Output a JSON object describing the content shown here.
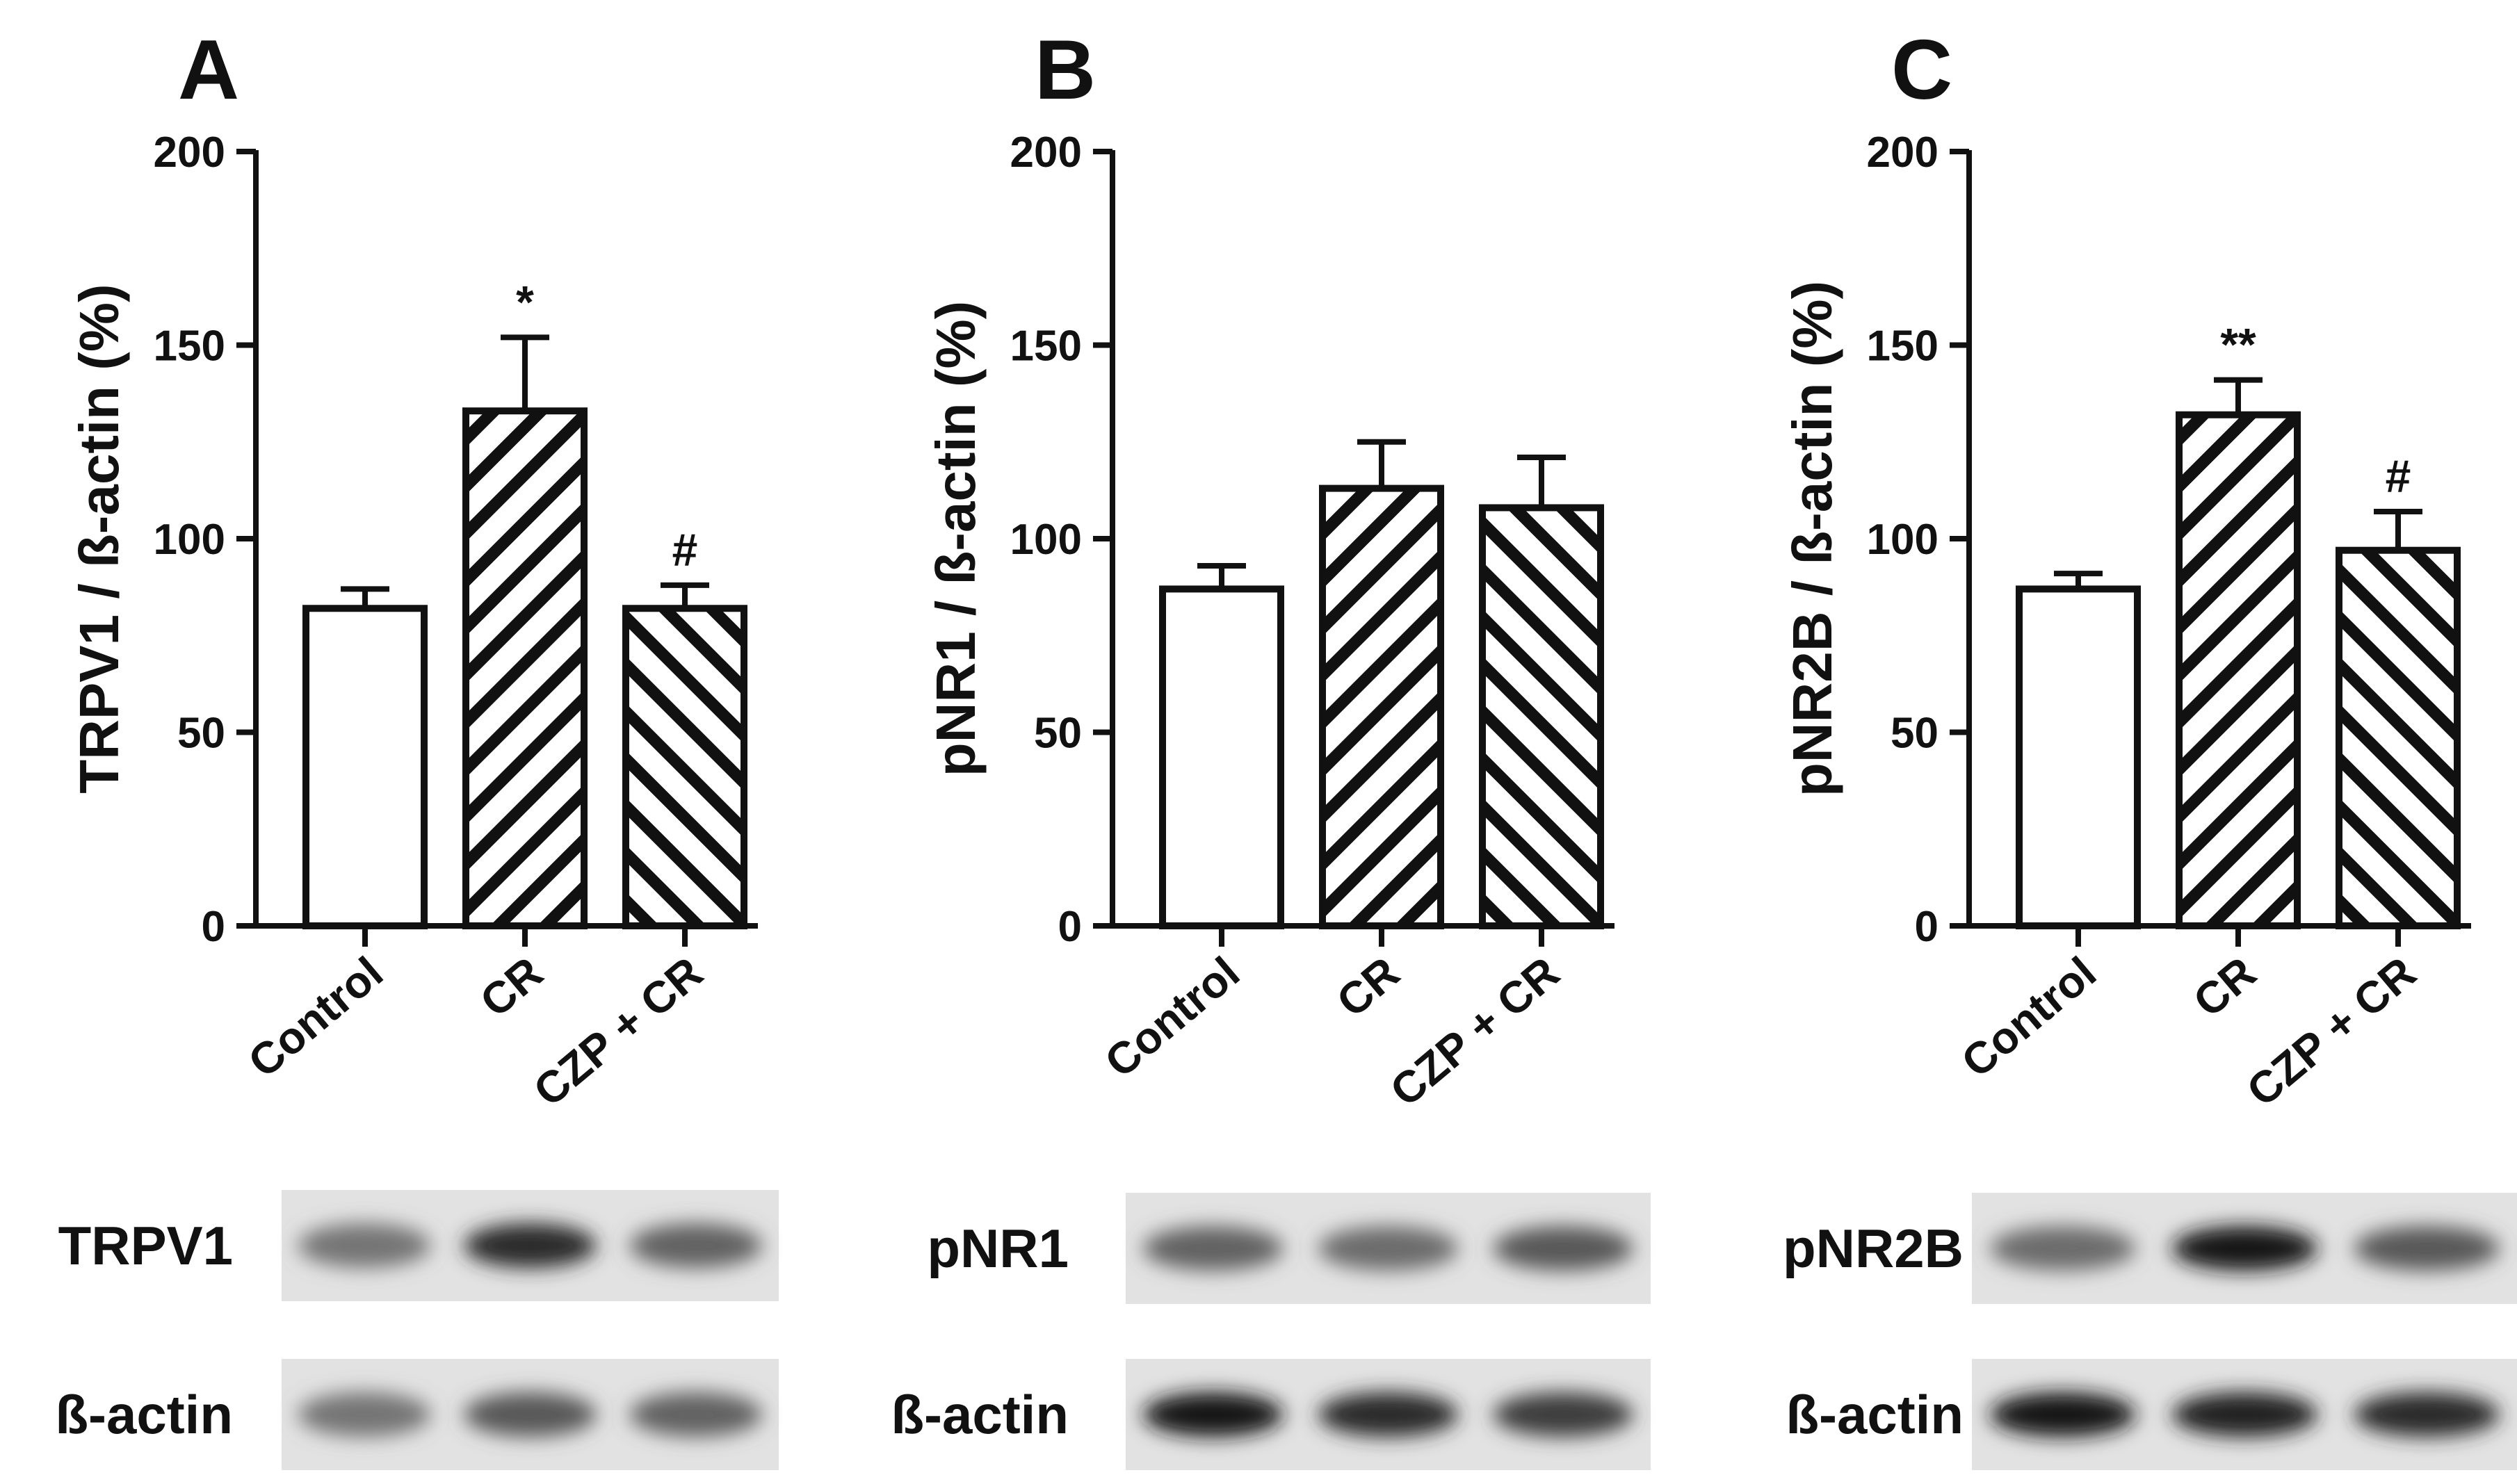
{
  "chart_data": [
    {
      "type": "bar",
      "panel_letter": "A",
      "categories": [
        "Control",
        "CR",
        "CZP + CR"
      ],
      "values": [
        82,
        133,
        82
      ],
      "errors": [
        5,
        19,
        6
      ],
      "annotations": [
        "",
        "*",
        "#"
      ],
      "ylabel": "TRPV1 / ß-actin (%)",
      "ylim": [
        0,
        200
      ],
      "yticks": [
        "0",
        "50",
        "100",
        "150",
        "200"
      ],
      "patterns": [
        "none",
        "back-diagonal",
        "forward-diagonal"
      ],
      "blot": {
        "rows": [
          {
            "label": "TRPV1",
            "intensities": [
              0.45,
              0.85,
              0.55
            ]
          },
          {
            "label": "ß-actin",
            "intensities": [
              0.45,
              0.6,
              0.55
            ]
          }
        ]
      }
    },
    {
      "type": "bar",
      "panel_letter": "B",
      "categories": [
        "Control",
        "CR",
        "CZP + CR"
      ],
      "values": [
        87,
        113,
        108
      ],
      "errors": [
        6,
        12,
        13
      ],
      "annotations": [
        "",
        "",
        ""
      ],
      "ylabel": "pNR1 / ß-actin (%)",
      "ylim": [
        0,
        200
      ],
      "yticks": [
        "0",
        "50",
        "100",
        "150",
        "200"
      ],
      "patterns": [
        "none",
        "back-diagonal",
        "forward-diagonal"
      ],
      "blot": {
        "rows": [
          {
            "label": "pNR1",
            "intensities": [
              0.55,
              0.5,
              0.6
            ]
          },
          {
            "label": "ß-actin",
            "intensities": [
              0.95,
              0.85,
              0.75
            ]
          }
        ]
      }
    },
    {
      "type": "bar",
      "panel_letter": "C",
      "categories": [
        "Control",
        "CR",
        "CZP + CR"
      ],
      "values": [
        87,
        132,
        97
      ],
      "errors": [
        4,
        9,
        10
      ],
      "annotations": [
        "",
        "**",
        "#"
      ],
      "ylabel": "pNR2B / ß-actin (%)",
      "ylim": [
        0,
        200
      ],
      "yticks": [
        "0",
        "50",
        "100",
        "150",
        "200"
      ],
      "patterns": [
        "none",
        "back-diagonal",
        "forward-diagonal"
      ],
      "blot": {
        "rows": [
          {
            "label": "pNR2B",
            "intensities": [
              0.5,
              0.95,
              0.6
            ]
          },
          {
            "label": "ß-actin",
            "intensities": [
              0.95,
              0.9,
              0.85
            ]
          }
        ]
      }
    }
  ]
}
